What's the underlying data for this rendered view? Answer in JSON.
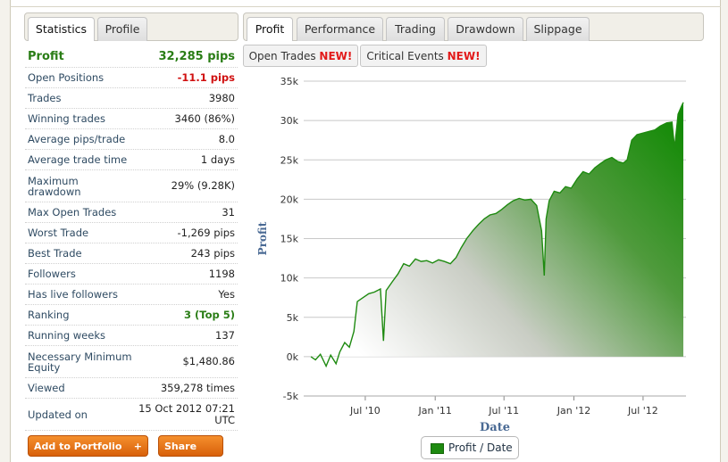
{
  "left_tabs": [
    "Statistics",
    "Profile"
  ],
  "stats": {
    "profit_label": "Profit",
    "profit_value": "32,285 pips",
    "open_positions_label": "Open Positions",
    "open_positions_value": "-11.1 pips",
    "trades_label": "Trades",
    "trades_value": "3980",
    "winning_label": "Winning trades",
    "winning_value": "3460 (86%)",
    "avg_pips_label": "Average pips/trade",
    "avg_pips_value": "8.0",
    "avg_time_label": "Average trade time",
    "avg_time_value": "1 days",
    "max_dd_label": "Maximum drawdown",
    "max_dd_value": "29% (9.28K)",
    "max_open_label": "Max Open Trades",
    "max_open_value": "31",
    "worst_label": "Worst Trade",
    "worst_value": "-1,269 pips",
    "best_label": "Best Trade",
    "best_value": "243 pips",
    "followers_label": "Followers",
    "followers_value": "1198",
    "live_followers_label": "Has live followers",
    "live_followers_value": "Yes",
    "ranking_label": "Ranking",
    "ranking_value": "3 (Top 5)",
    "running_label": "Running weeks",
    "running_value": "137",
    "min_equity_label": "Necessary Minimum Equity",
    "min_equity_value": "$1,480.86",
    "viewed_label": "Viewed",
    "viewed_value": "359,278 times",
    "updated_label": "Updated on",
    "updated_value": "15 Oct 2012 07:21 UTC"
  },
  "buttons": {
    "add_portfolio": "Add to Portfolio",
    "add_plus": "+",
    "share": "Share"
  },
  "right_tabs": [
    "Profit",
    "Performance",
    "Trading",
    "Drawdown",
    "Slippage"
  ],
  "sub_tabs": {
    "open_trades": "Open Trades",
    "critical_events": "Critical Events",
    "new_badge": "NEW!"
  },
  "legend": {
    "label": "Profit / Date"
  },
  "colors": {
    "accent_green": "#1e8a10",
    "loss_red": "#d01010",
    "button_orange": "#e8731a"
  },
  "chart_data": {
    "type": "area",
    "title": "",
    "xlabel": "Date",
    "ylabel": "Profit",
    "ylim": [
      -5000,
      35000
    ],
    "yticks": [
      "-5k",
      "0k",
      "5k",
      "10k",
      "15k",
      "20k",
      "25k",
      "30k",
      "35k"
    ],
    "xticks": [
      "Jul '10",
      "Jan '11",
      "Jul '11",
      "Jan '12",
      "Jul '12"
    ],
    "grid": true,
    "series": [
      {
        "name": "Profit / Date",
        "points": [
          [
            "2010-02-08",
            0
          ],
          [
            "2010-02-20",
            -400
          ],
          [
            "2010-03-05",
            300
          ],
          [
            "2010-03-20",
            -1200
          ],
          [
            "2010-04-01",
            200
          ],
          [
            "2010-04-15",
            -900
          ],
          [
            "2010-04-25",
            600
          ],
          [
            "2010-05-08",
            1800
          ],
          [
            "2010-05-20",
            1200
          ],
          [
            "2010-06-01",
            3200
          ],
          [
            "2010-06-10",
            7000
          ],
          [
            "2010-06-25",
            7500
          ],
          [
            "2010-07-10",
            8000
          ],
          [
            "2010-07-25",
            8200
          ],
          [
            "2010-08-10",
            8600
          ],
          [
            "2010-08-18",
            2000
          ],
          [
            "2010-08-25",
            8400
          ],
          [
            "2010-09-10",
            9500
          ],
          [
            "2010-09-25",
            10500
          ],
          [
            "2010-10-10",
            11800
          ],
          [
            "2010-10-25",
            11500
          ],
          [
            "2010-11-10",
            12400
          ],
          [
            "2010-11-25",
            12100
          ],
          [
            "2010-12-10",
            12200
          ],
          [
            "2010-12-25",
            11900
          ],
          [
            "2011-01-10",
            12300
          ],
          [
            "2011-01-25",
            12100
          ],
          [
            "2011-02-10",
            11800
          ],
          [
            "2011-02-25",
            12600
          ],
          [
            "2011-03-10",
            13800
          ],
          [
            "2011-03-25",
            15000
          ],
          [
            "2011-04-10",
            16000
          ],
          [
            "2011-04-25",
            16800
          ],
          [
            "2011-05-10",
            17500
          ],
          [
            "2011-05-25",
            18000
          ],
          [
            "2011-06-10",
            18200
          ],
          [
            "2011-06-25",
            18700
          ],
          [
            "2011-07-10",
            19300
          ],
          [
            "2011-07-25",
            19800
          ],
          [
            "2011-08-10",
            20100
          ],
          [
            "2011-08-25",
            19900
          ],
          [
            "2011-09-10",
            20000
          ],
          [
            "2011-09-25",
            19200
          ],
          [
            "2011-10-08",
            16000
          ],
          [
            "2011-10-15",
            10300
          ],
          [
            "2011-10-20",
            17500
          ],
          [
            "2011-10-28",
            19800
          ],
          [
            "2011-11-10",
            21000
          ],
          [
            "2011-11-25",
            20800
          ],
          [
            "2011-12-10",
            21600
          ],
          [
            "2011-12-25",
            21400
          ],
          [
            "2012-01-10",
            22600
          ],
          [
            "2012-01-25",
            23500
          ],
          [
            "2012-02-10",
            23200
          ],
          [
            "2012-02-25",
            24000
          ],
          [
            "2012-03-10",
            24500
          ],
          [
            "2012-03-25",
            25000
          ],
          [
            "2012-04-10",
            25300
          ],
          [
            "2012-04-25",
            24800
          ],
          [
            "2012-05-10",
            24600
          ],
          [
            "2012-05-20",
            25000
          ],
          [
            "2012-06-01",
            27500
          ],
          [
            "2012-06-15",
            28200
          ],
          [
            "2012-07-01",
            28400
          ],
          [
            "2012-07-15",
            28600
          ],
          [
            "2012-08-01",
            28800
          ],
          [
            "2012-08-15",
            29300
          ],
          [
            "2012-09-01",
            29700
          ],
          [
            "2012-09-15",
            29800
          ],
          [
            "2012-09-22",
            26500
          ],
          [
            "2012-10-01",
            30800
          ],
          [
            "2012-10-10",
            31800
          ],
          [
            "2012-10-15",
            32300
          ]
        ]
      }
    ]
  }
}
